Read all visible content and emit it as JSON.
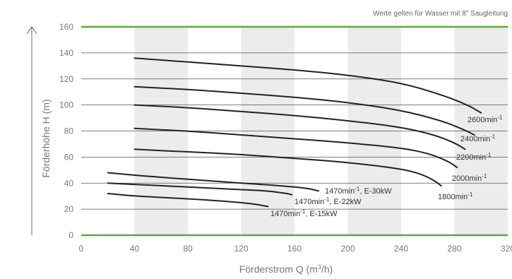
{
  "chart_data": {
    "type": "line",
    "note": "Werte gelten für Wasser mit 8\" Saugleitung",
    "xlabel_main": "Förderstrom Q (m",
    "xlabel_sup": "3",
    "xlabel_end": "/h)",
    "ylabel": "Förderhöhe H (m)",
    "xlim": [
      0,
      320
    ],
    "ylim": [
      0,
      160
    ],
    "xticks": [
      "0",
      "40",
      "80",
      "120",
      "160",
      "200",
      "240",
      "280",
      "320"
    ],
    "yticks": [
      "0",
      "20",
      "40",
      "60",
      "80",
      "100",
      "120",
      "140",
      "160"
    ],
    "shaded_bands": [
      [
        40,
        80
      ],
      [
        120,
        160
      ],
      [
        200,
        240
      ],
      [
        280,
        320
      ]
    ],
    "colors": {
      "axis_line": "#5aab3c",
      "curve": "#222222",
      "band": "#ececec",
      "grid": "#555555"
    },
    "series": [
      {
        "label_main": "2600min",
        "label_sup": "-1",
        "x": [
          40,
          80,
          120,
          160,
          200,
          240,
          270,
          290,
          300
        ],
        "y": [
          136,
          133,
          130,
          127,
          123,
          117,
          108,
          100,
          94
        ]
      },
      {
        "label_main": "2400min",
        "label_sup": "-1",
        "x": [
          40,
          80,
          120,
          160,
          200,
          240,
          270,
          285,
          295
        ],
        "y": [
          114,
          112,
          109,
          106,
          102,
          96,
          88,
          82,
          77
        ]
      },
      {
        "label_main": "2200min",
        "label_sup": "-1",
        "x": [
          40,
          80,
          120,
          160,
          200,
          240,
          265,
          280,
          288
        ],
        "y": [
          100,
          98,
          95,
          92,
          88,
          83,
          77,
          71,
          66
        ]
      },
      {
        "label_main": "2000min",
        "label_sup": "-1",
        "x": [
          40,
          80,
          120,
          160,
          200,
          240,
          260,
          275,
          282
        ],
        "y": [
          82,
          80,
          77,
          74,
          71,
          67,
          63,
          57,
          52
        ]
      },
      {
        "label_main": "1800min",
        "label_sup": "-1",
        "x": [
          40,
          80,
          120,
          160,
          200,
          240,
          255,
          265,
          270
        ],
        "y": [
          66,
          64,
          62,
          59,
          56,
          51,
          47,
          42,
          38
        ]
      },
      {
        "label_main": "1470min",
        "label_sup": "-1",
        "label_end": ", E-30kW",
        "x": [
          20,
          40,
          80,
          120,
          150,
          170,
          178
        ],
        "y": [
          48,
          46,
          43,
          40,
          38,
          36,
          34
        ]
      },
      {
        "label_main": "1470min",
        "label_sup": "-1",
        "label_end": ", E-22kW",
        "x": [
          20,
          40,
          80,
          120,
          140,
          155,
          158
        ],
        "y": [
          40,
          39,
          37,
          35,
          34,
          32,
          31
        ]
      },
      {
        "label_main": "1470min",
        "label_sup": "-1",
        "label_end": ", E-15kW",
        "x": [
          20,
          40,
          80,
          110,
          130,
          140
        ],
        "y": [
          32,
          30,
          28,
          26,
          24,
          22
        ]
      }
    ]
  }
}
